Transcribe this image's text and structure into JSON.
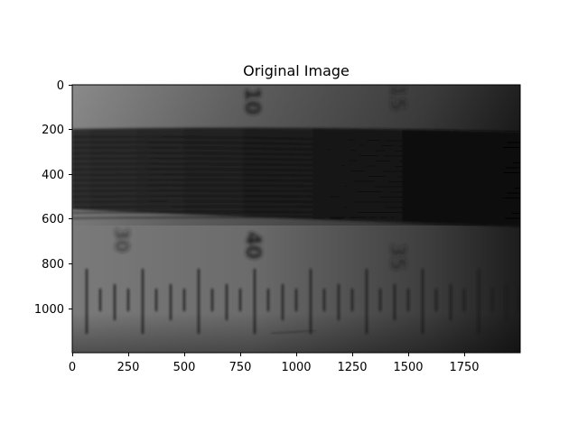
{
  "figure": {
    "title": "Original Image",
    "xaxis": {
      "ticks": [
        "0",
        "250",
        "500",
        "750",
        "1000",
        "1250",
        "1500",
        "1750"
      ]
    },
    "yaxis": {
      "ticks": [
        "0",
        "200",
        "400",
        "600",
        "800",
        "1000"
      ]
    },
    "image": {
      "description": "grayscale photo of a ruler scale with a dark fringe band",
      "printed_labels": [
        "10",
        "40",
        "35",
        "15",
        "30"
      ]
    }
  }
}
